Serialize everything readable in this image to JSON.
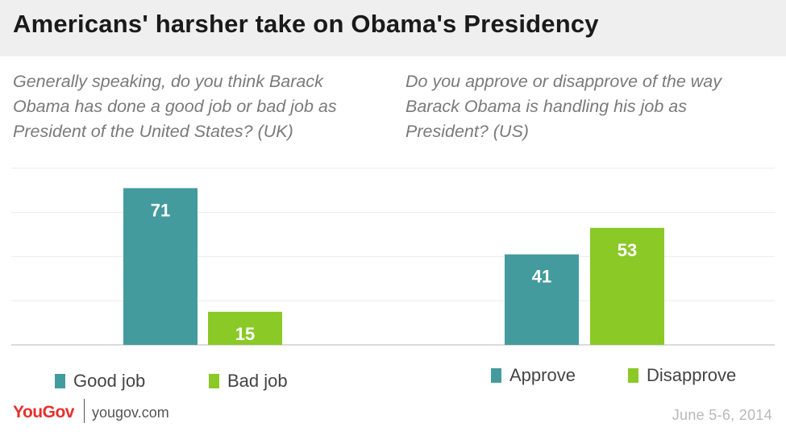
{
  "header": {
    "title": "Americans' harsher take on Obama's Presidency"
  },
  "colors": {
    "teal": "#449b9d",
    "green": "#8ac926"
  },
  "chart_data": [
    {
      "type": "bar",
      "title": "Generally speaking, do you think Barack Obama has done a good job or bad job as President of the United States? (UK)",
      "categories": [
        "Good job",
        "Bad job"
      ],
      "values": [
        71,
        15
      ],
      "colors": [
        "#449b9d",
        "#8ac926"
      ],
      "ylim": [
        0,
        80
      ],
      "grid": true,
      "legend": "bottom"
    },
    {
      "type": "bar",
      "title": "Do you approve or disapprove of the way Barack Obama is handling his job as President? (US)",
      "categories": [
        "Approve",
        "Disapprove"
      ],
      "values": [
        41,
        53
      ],
      "colors": [
        "#449b9d",
        "#8ac926"
      ],
      "ylim": [
        0,
        80
      ],
      "grid": true,
      "legend": "bottom"
    }
  ],
  "footer": {
    "brand": "YouGov",
    "website": "yougov.com",
    "date": "June 5-6, 2014"
  }
}
